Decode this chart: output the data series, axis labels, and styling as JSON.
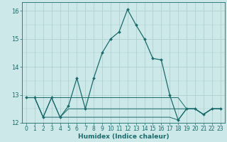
{
  "xlabel": "Humidex (Indice chaleur)",
  "background_color": "#cce8e8",
  "grid_color": "#aacccc",
  "line_color": "#1a6b6b",
  "xlim": [
    -0.5,
    23.5
  ],
  "ylim": [
    12.0,
    16.3
  ],
  "yticks": [
    12,
    13,
    14,
    15,
    16
  ],
  "xticks": [
    0,
    1,
    2,
    3,
    4,
    5,
    6,
    7,
    8,
    9,
    10,
    11,
    12,
    13,
    14,
    15,
    16,
    17,
    18,
    19,
    20,
    21,
    22,
    23
  ],
  "line1_x": [
    0,
    1,
    2,
    3,
    4,
    5,
    6,
    7,
    8,
    9,
    10,
    11,
    12,
    13,
    14,
    15,
    16,
    17,
    18,
    19,
    20,
    21,
    22,
    23
  ],
  "line1_y": [
    12.9,
    12.9,
    12.2,
    12.9,
    12.2,
    12.6,
    13.6,
    12.5,
    13.6,
    14.5,
    15.0,
    15.25,
    16.05,
    15.5,
    15.0,
    14.3,
    14.25,
    13.0,
    12.1,
    12.5,
    12.5,
    12.3,
    12.5,
    12.5
  ],
  "line2_y": [
    12.9,
    12.9,
    12.2,
    12.2,
    12.2,
    12.2,
    12.2,
    12.2,
    12.2,
    12.2,
    12.2,
    12.2,
    12.2,
    12.2,
    12.2,
    12.2,
    12.2,
    12.2,
    12.1,
    12.5,
    12.5,
    12.3,
    12.5,
    12.5
  ],
  "line3_y": [
    12.9,
    12.9,
    12.9,
    12.9,
    12.9,
    12.9,
    12.9,
    12.9,
    12.9,
    12.9,
    12.9,
    12.9,
    12.9,
    12.9,
    12.9,
    12.9,
    12.9,
    12.9,
    12.9,
    12.5,
    12.5,
    12.3,
    12.5,
    12.5
  ],
  "line4_y": [
    12.9,
    12.9,
    12.2,
    12.9,
    12.2,
    12.5,
    12.5,
    12.5,
    12.5,
    12.5,
    12.5,
    12.5,
    12.5,
    12.5,
    12.5,
    12.5,
    12.5,
    12.5,
    12.5,
    12.5,
    12.5,
    12.3,
    12.5,
    12.5
  ],
  "xlabel_fontsize": 6.5,
  "tick_fontsize": 5.5,
  "ytick_fontsize": 6.0
}
